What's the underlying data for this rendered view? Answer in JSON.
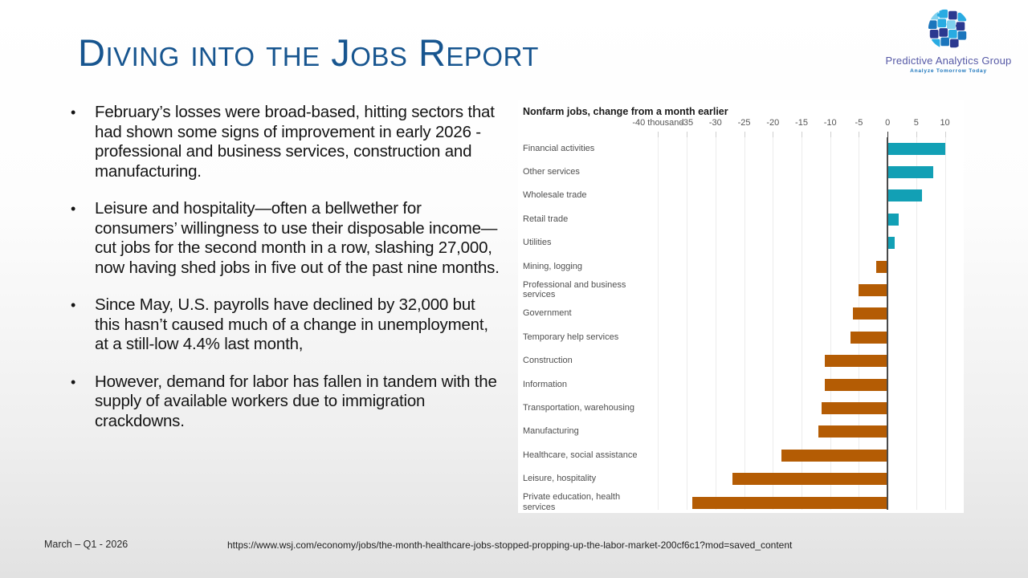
{
  "slide": {
    "title": "Diving into the Jobs Report",
    "bullets": [
      "February’s losses were broad-based, hitting sectors that had shown some signs of improvement in early 2026 - professional and business services, construction and manufacturing.",
      "Leisure and hospitality—often a bellwether for consumers’ willingness to use their disposable income—cut jobs for the second month in a row, slashing 27,000, now having shed jobs in five out of the past nine months.",
      "Since May, U.S. payrolls have declined by 32,000 but this hasn’t caused much of a change in unemployment, at a still-low 4.4% last month,",
      "However, demand for labor has fallen in tandem with the supply of available workers due to immigration crackdowns."
    ],
    "footer": {
      "date": "March – Q1 - 2026",
      "url": "https://www.wsj.com/economy/jobs/the-month-healthcare-jobs-stopped-propping-up-the-labor-market-200cf6c1?mod=saved_content"
    }
  },
  "logo": {
    "name": "Predictive Analytics Group",
    "tagline": "Analyze Tomorrow Today",
    "globe_icon": "puzzle-globe-icon",
    "colors": {
      "name_text": "#5558a5",
      "tagline_text": "#1b75bc",
      "puzzle_dark": "#2b3990",
      "puzzle_medium": "#1b75bc",
      "puzzle_light": "#29abe2",
      "puzzle_pale": "#7fd0ee"
    }
  },
  "title_color": "#17558f",
  "chart_data": {
    "type": "bar",
    "orientation": "horizontal",
    "title": "Nonfarm jobs, change from a month earlier",
    "xlabel": "thousand",
    "xlim": [
      -40.2,
      13
    ],
    "grid": true,
    "x_ticks": [
      {
        "v": -40,
        "label": "-40 thousand"
      },
      {
        "v": -35,
        "label": "-35"
      },
      {
        "v": -30,
        "label": "-30"
      },
      {
        "v": -25,
        "label": "-25"
      },
      {
        "v": -20,
        "label": "-20"
      },
      {
        "v": -15,
        "label": "-15"
      },
      {
        "v": -10,
        "label": "-10"
      },
      {
        "v": -5,
        "label": "-5"
      },
      {
        "v": 0,
        "label": "0"
      },
      {
        "v": 5,
        "label": "5"
      },
      {
        "v": 10,
        "label": "10"
      }
    ],
    "categories": [
      "Financial activities",
      "Other services",
      "Wholesale trade",
      "Retail trade",
      "Utilities",
      "Mining, logging",
      "Professional and business services",
      "Government",
      "Temporary help services",
      "Construction",
      "Information",
      "Transportation, warehousing",
      "Manufacturing",
      "Healthcare, social assistance",
      "Leisure, hospitality",
      "Private education, health services"
    ],
    "values": [
      10,
      8,
      6,
      2,
      1.3,
      -2,
      -5,
      -6,
      -6.5,
      -11,
      -11,
      -11.5,
      -12,
      -18.5,
      -27,
      -34
    ],
    "positive_color": "#12a0b5",
    "negative_color": "#b45c04"
  }
}
